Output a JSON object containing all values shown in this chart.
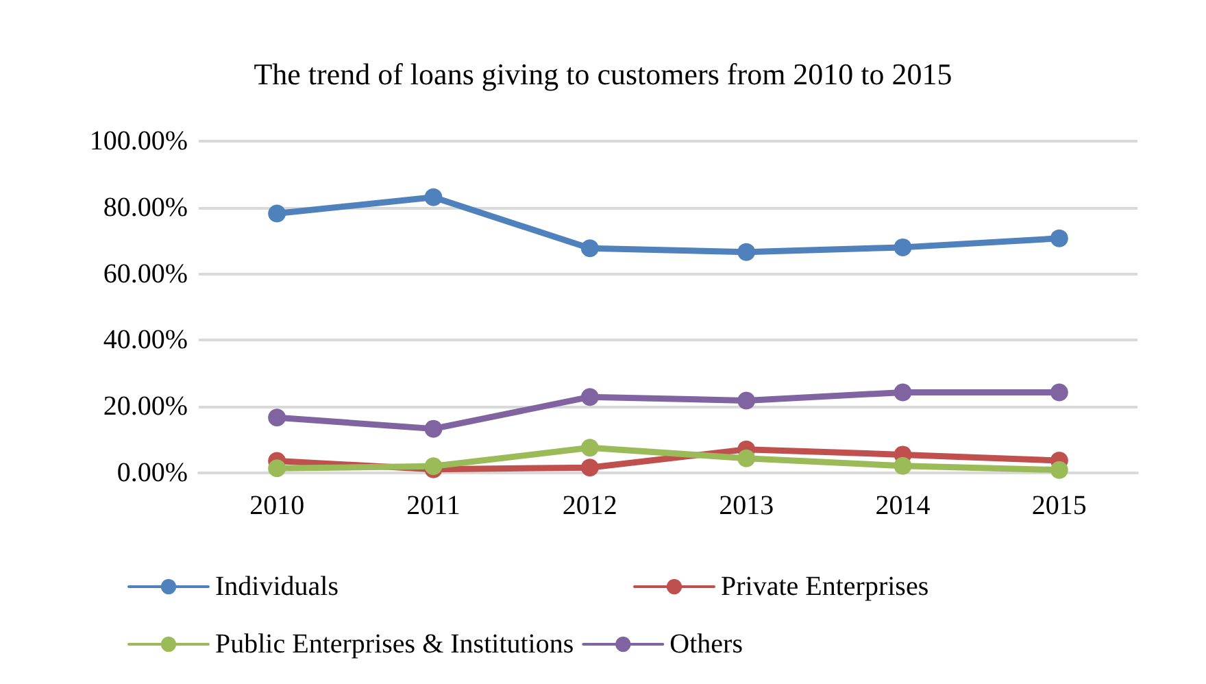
{
  "chart_data": {
    "type": "line",
    "title": "The trend of loans giving to customers from 2010 to 2015",
    "categories": [
      "2010",
      "2011",
      "2012",
      "2013",
      "2014",
      "2015"
    ],
    "series": [
      {
        "name": "Individuals",
        "color": "#4f81bd",
        "values": [
          78.2,
          83.1,
          67.7,
          66.6,
          68.0,
          70.7
        ]
      },
      {
        "name": "Private Enterprises",
        "color": "#c0504d",
        "values": [
          3.6,
          1.1,
          1.6,
          7.1,
          5.5,
          3.7
        ]
      },
      {
        "name": "Public Enterprises & Institutions",
        "color": "#9bbb59",
        "values": [
          1.4,
          2.0,
          7.6,
          4.4,
          2.1,
          0.9
        ]
      },
      {
        "name": "Others",
        "color": "#8064a2",
        "values": [
          16.7,
          13.3,
          22.9,
          21.8,
          24.3,
          24.3
        ]
      }
    ],
    "ylim": [
      0,
      100
    ],
    "yticks": [
      {
        "value": 0,
        "label": "0.00%"
      },
      {
        "value": 20,
        "label": "20.00%"
      },
      {
        "value": 40,
        "label": "40.00%"
      },
      {
        "value": 60,
        "label": "60.00%"
      },
      {
        "value": 80,
        "label": "80.00%"
      },
      {
        "value": 100,
        "label": "100.00%"
      }
    ],
    "grid": "y",
    "legend": "bottom",
    "marker": "circle",
    "line_style": "solid"
  }
}
